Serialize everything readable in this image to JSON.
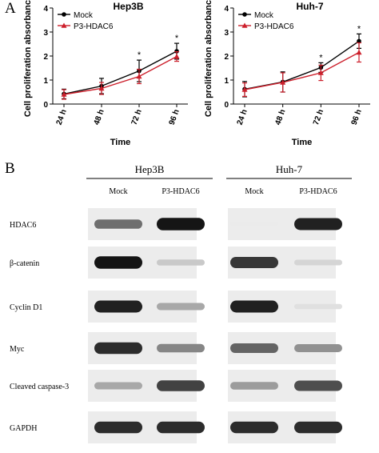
{
  "panel_a_letter": "A",
  "panel_b_letter": "B",
  "chart_data": [
    {
      "type": "line",
      "title": "Hep3B",
      "xlabel": "Time",
      "ylabel": "Cell proliferation absorbance",
      "categories": [
        "24 h",
        "48 h",
        "72 h",
        "96 h"
      ],
      "ylim": [
        0,
        4
      ],
      "yticks": [
        "0",
        "1",
        "2",
        "3",
        "4"
      ],
      "legend_position": "top-left",
      "series": [
        {
          "name": "Mock",
          "color": "#000000",
          "marker": "circle",
          "values": [
            0.42,
            0.75,
            1.38,
            2.2
          ],
          "errors": [
            0.2,
            0.32,
            0.45,
            0.33
          ]
        },
        {
          "name": "P3-HDAC6",
          "color": "#cc1f2b",
          "marker": "triangle",
          "values": [
            0.4,
            0.65,
            1.15,
            1.98
          ],
          "errors": [
            0.2,
            0.25,
            0.3,
            0.2
          ]
        }
      ],
      "annotations": [
        {
          "category": "72 h",
          "text": "*"
        },
        {
          "category": "96 h",
          "text": "*"
        }
      ]
    },
    {
      "type": "line",
      "title": "Huh-7",
      "xlabel": "Time",
      "ylabel": "Cell proliferation absorbance",
      "categories": [
        "24 h",
        "48 h",
        "72 h",
        "96 h"
      ],
      "ylim": [
        0,
        4
      ],
      "yticks": [
        "0",
        "1",
        "2",
        "3",
        "4"
      ],
      "legend_position": "top-left",
      "series": [
        {
          "name": "Mock",
          "color": "#000000",
          "marker": "circle",
          "values": [
            0.62,
            0.92,
            1.52,
            2.62
          ],
          "errors": [
            0.32,
            0.42,
            0.2,
            0.3
          ]
        },
        {
          "name": "P3-HDAC6",
          "color": "#cc1f2b",
          "marker": "triangle",
          "values": [
            0.6,
            0.9,
            1.3,
            2.15
          ],
          "errors": [
            0.28,
            0.4,
            0.32,
            0.4
          ]
        }
      ],
      "annotations": [
        {
          "category": "72 h",
          "text": "*"
        },
        {
          "category": "96 h",
          "text": "*"
        }
      ]
    }
  ],
  "western_blot": {
    "cell_lines": [
      "Hep3B",
      "Huh-7"
    ],
    "lane_labels": [
      "Mock",
      "P3-HDAC6",
      "Mock",
      "P3-HDAC6"
    ],
    "proteins": [
      {
        "name": "HDAC6",
        "intensity": [
          0.55,
          0.95,
          0.0,
          0.9
        ]
      },
      {
        "name": "β-catenin",
        "intensity": [
          0.95,
          0.15,
          0.8,
          0.1
        ]
      },
      {
        "name": "Cyclin D1",
        "intensity": [
          0.9,
          0.3,
          0.9,
          0.05
        ]
      },
      {
        "name": "Myc",
        "intensity": [
          0.85,
          0.45,
          0.6,
          0.4
        ]
      },
      {
        "name": "Cleaved caspase-3",
        "intensity": [
          0.3,
          0.75,
          0.35,
          0.7
        ]
      },
      {
        "name": "GAPDH",
        "intensity": [
          0.85,
          0.85,
          0.85,
          0.85
        ]
      }
    ]
  }
}
